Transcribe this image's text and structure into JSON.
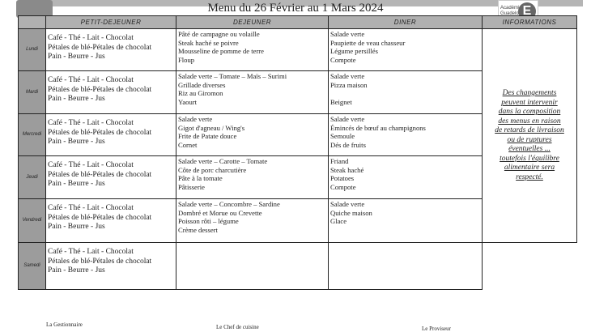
{
  "title": "Menu du 26 Février au 1 Mars 2024",
  "logo_right_text": "Académie Guadeloupe",
  "headers": [
    "",
    "PETIT-DEJEUNER",
    "DEJEUNER",
    "DINER",
    "INFORMATIONS"
  ],
  "days": [
    {
      "day": "Lundi",
      "petit_dejeuner": [
        "Café - Thé - Lait - Chocolat",
        "Pétales de blé-Pétales de chocolat",
        "Pain - Beurre - Jus"
      ],
      "dejeuner": [
        " Pâté de campagne ou volaille",
        "Steak haché se poivre",
        "Mousseline de pomme de terre",
        "Floup"
      ],
      "diner": [
        "Salade verte",
        "Paupiette de veau chasseur",
        "Légume persillés",
        "Compote"
      ]
    },
    {
      "day": "Mardi",
      "petit_dejeuner": [
        "Café - Thé - Lait - Chocolat",
        "Pétales de blé-Pétales de chocolat",
        "Pain - Beurre - Jus"
      ],
      "dejeuner": [
        "Salade verte – Tomate – Maïs – Surimi",
        "Grillade diverses",
        "Riz au Giromon",
        "Yaourt"
      ],
      "diner": [
        "Salade verte",
        "Pizza maison",
        "",
        "Beignet"
      ]
    },
    {
      "day": "Mercredi",
      "petit_dejeuner": [
        "Café - Thé - Lait - Chocolat",
        "Pétales de blé-Pétales de chocolat",
        "Pain - Beurre - Jus"
      ],
      "dejeuner": [
        "Salade verte",
        "Gigot d'agneau / Wing's",
        "Frite de Patate douce",
        "Cornet"
      ],
      "diner": [
        "Salade verte",
        "Émincés de bœuf au champignons",
        "Semoule",
        "Dés de fruits"
      ]
    },
    {
      "day": "Jeudi",
      "petit_dejeuner": [
        "Café - Thé - Lait - Chocolat",
        "Pétales de blé-Pétales de chocolat",
        "Pain - Beurre - Jus"
      ],
      "dejeuner": [
        "Salade verte – Carotte –  Tomate",
        "Côte de porc charcutière",
        "Pâte à la tomate",
        "Pâtisserie"
      ],
      "diner": [
        "Friand",
        "Steak haché",
        "Potatoes",
        "Compote"
      ]
    },
    {
      "day": "Vendredi",
      "petit_dejeuner": [
        "Café - Thé - Lait - Chocolat",
        "Pétales de blé-Pétales de chocolat",
        "Pain - Beurre - Jus"
      ],
      "dejeuner": [
        "Salade verte  – Concombre – Sardine",
        "Dombré et Morue ou Crevette",
        "Poisson rôti – légume",
        "Crème dessert"
      ],
      "diner": [
        "Salade verte",
        "Quiche maison",
        "Glace"
      ]
    },
    {
      "day": "Samedi",
      "petit_dejeuner": [
        "Café - Thé - Lait - Chocolat",
        "Pétales de blé-Pétales de chocolat",
        "Pain - Beurre - Jus"
      ],
      "dejeuner": [],
      "diner": []
    }
  ],
  "information": [
    "Des changements",
    "peuvent intervenir",
    "dans la composition",
    "des menus en raison",
    "de retards de livraison",
    "ou de ruptures",
    "éventuelles ...",
    "toutefois l'équilibre",
    "alimentaire sera",
    "respecté."
  ],
  "signatures": [
    "La Gestionnaire",
    "Le Chef de cuisine",
    "Le Proviseur"
  ]
}
